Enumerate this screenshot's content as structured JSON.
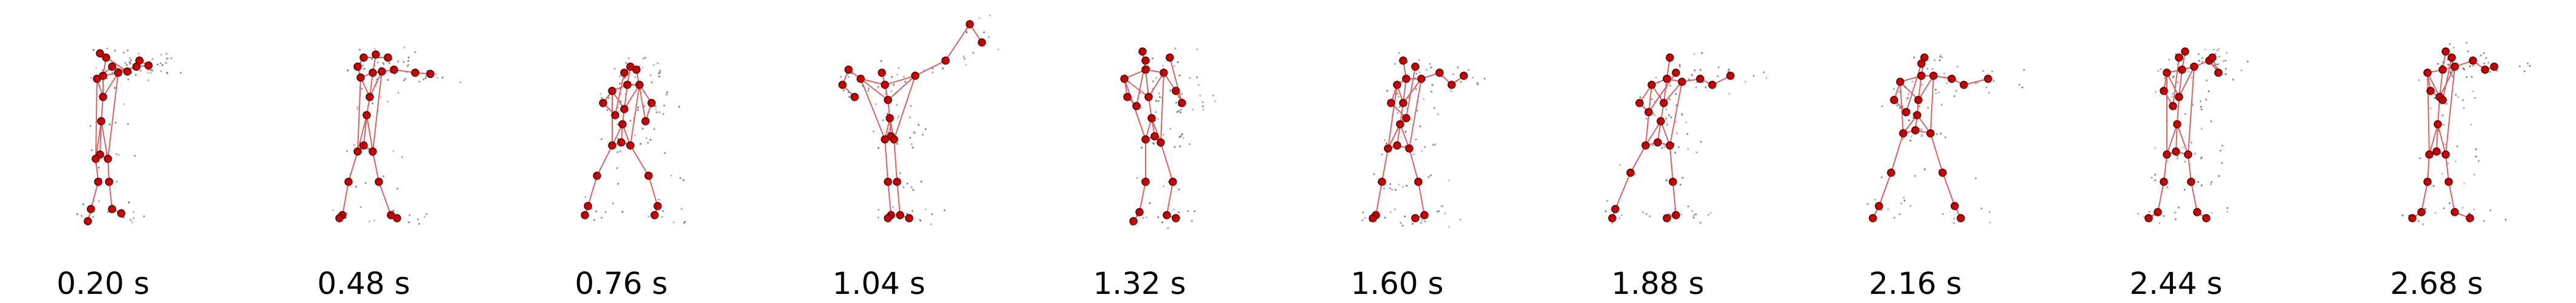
{
  "figure": {
    "frames": [
      {
        "time_label": "0.20 s",
        "pose": "arms-raised-left"
      },
      {
        "time_label": "0.48 s",
        "pose": "arm-extended-right"
      },
      {
        "time_label": "0.76 s",
        "pose": "crouch-wide"
      },
      {
        "time_label": "1.04 s",
        "pose": "arm-raised-high"
      },
      {
        "time_label": "1.32 s",
        "pose": "stride-forward"
      },
      {
        "time_label": "1.60 s",
        "pose": "arm-forward"
      },
      {
        "time_label": "1.88 s",
        "pose": "lunge-left"
      },
      {
        "time_label": "2.16 s",
        "pose": "wide-stance"
      },
      {
        "time_label": "2.44 s",
        "pose": "upright-wide"
      },
      {
        "time_label": "2.68 s",
        "pose": "upright-narrow"
      }
    ],
    "colors": {
      "joint": "#cc0000",
      "joint_outline": "#550000",
      "bone": "#e06060",
      "trail": "#555555"
    }
  }
}
